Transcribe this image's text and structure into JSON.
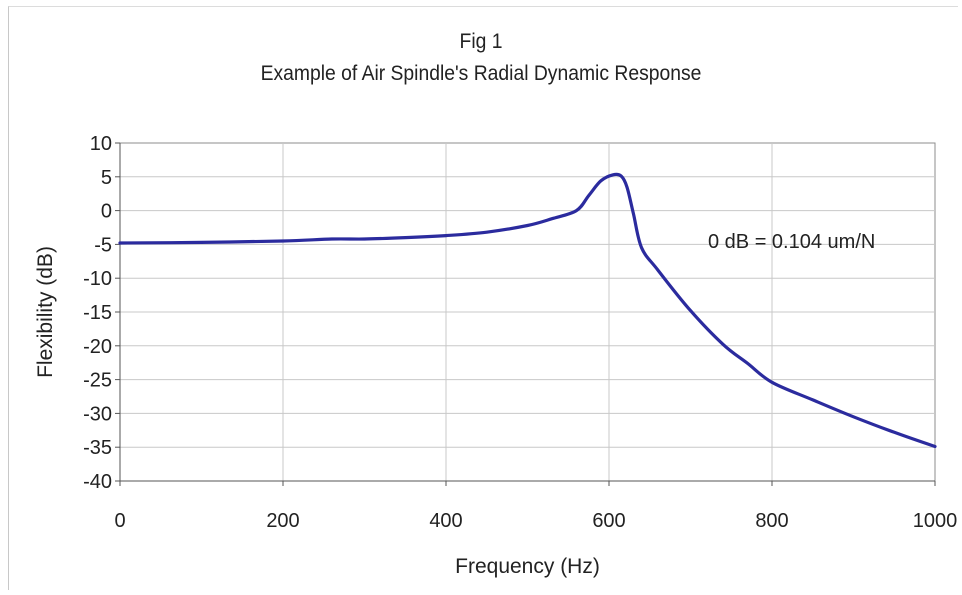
{
  "chart_data": {
    "type": "line",
    "title": "Fig 1",
    "subtitle": "Example of Air Spindle's Radial Dynamic Response",
    "xlabel": "Frequency (Hz)",
    "ylabel": "Flexibility (dB)",
    "xlim": [
      0,
      1000
    ],
    "ylim": [
      -40,
      10
    ],
    "xticks": [
      0,
      200,
      400,
      600,
      800,
      1000
    ],
    "yticks": [
      10,
      5,
      0,
      -5,
      -10,
      -15,
      -20,
      -25,
      -30,
      -35,
      -40
    ],
    "grid": true,
    "annotation": "0 dB = 0.104 um/N",
    "line_color": "#2b2b9e",
    "series": [
      {
        "x": [
          0,
          100,
          200,
          260,
          300,
          350,
          400,
          450,
          500,
          530,
          560,
          575,
          590,
          605,
          615,
          622,
          630,
          640,
          660,
          700,
          740,
          770,
          800,
          850,
          900,
          950,
          1000
        ],
        "y": [
          -4.8,
          -4.7,
          -4.5,
          -4.2,
          -4.2,
          -4.0,
          -3.7,
          -3.2,
          -2.2,
          -1.2,
          0.0,
          2.2,
          4.4,
          5.3,
          5.1,
          3.5,
          -0.5,
          -5.5,
          -8.8,
          -14.8,
          -19.8,
          -22.6,
          -25.4,
          -28.0,
          -30.5,
          -32.8,
          -34.9
        ]
      }
    ]
  }
}
